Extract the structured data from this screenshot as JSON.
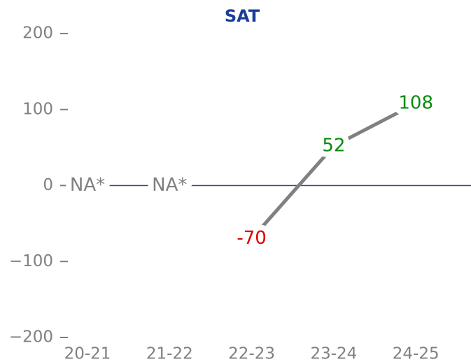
{
  "chart_data": {
    "type": "line",
    "title": "SAT",
    "categories": [
      "20-21",
      "21-22",
      "22-23",
      "23-24",
      "24-25"
    ],
    "values": [
      null,
      null,
      -70,
      52,
      108
    ],
    "value_labels": [
      "NA*",
      "NA*",
      "-70",
      "52",
      "108"
    ],
    "value_label_colors": [
      "#808080",
      "#808080",
      "#e00000",
      "#0a8a0a",
      "#0a8a0a"
    ],
    "color": "#808080",
    "zero_line_color": "#2e4a8c",
    "ylim": [
      -200,
      200
    ],
    "yticks": [
      {
        "value": -200,
        "label": "−200"
      },
      {
        "value": -100,
        "label": "−100"
      },
      0,
      100,
      200
    ]
  }
}
